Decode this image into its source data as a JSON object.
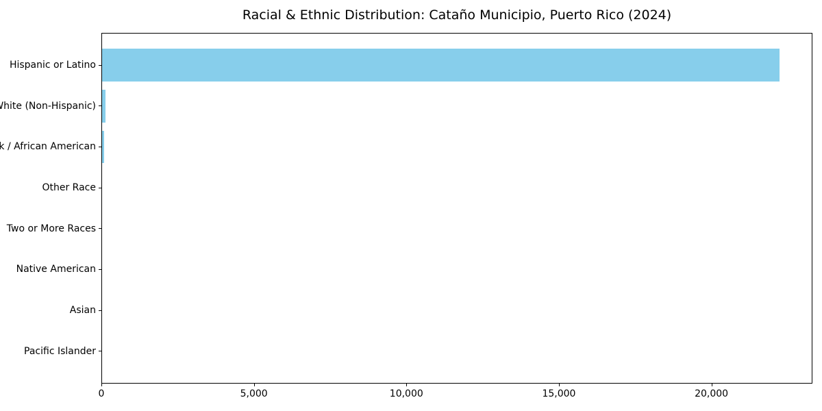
{
  "chart_data": {
    "type": "bar",
    "orientation": "horizontal",
    "title": "Racial & Ethnic Distribution: Cataño Municipio, Puerto Rico (2024)",
    "xlabel": "",
    "ylabel": "",
    "categories": [
      "Hispanic or Latino",
      "White (Non-Hispanic)",
      "Black / African American",
      "Other Race",
      "Two or More Races",
      "Native American",
      "Asian",
      "Pacific Islander"
    ],
    "values": [
      22200,
      112,
      74,
      0,
      0,
      0,
      0,
      0
    ],
    "xlim": [
      0,
      23310
    ],
    "xticks": [
      0,
      5000,
      10000,
      15000,
      20000
    ],
    "xtick_labels": [
      "0",
      "5,000",
      "10,000",
      "15,000",
      "20,000"
    ],
    "grid": false,
    "legend": null,
    "colors": {
      "bar": "#87ceeb",
      "text": "#000000",
      "spine": "#000000",
      "background": "#ffffff"
    }
  }
}
